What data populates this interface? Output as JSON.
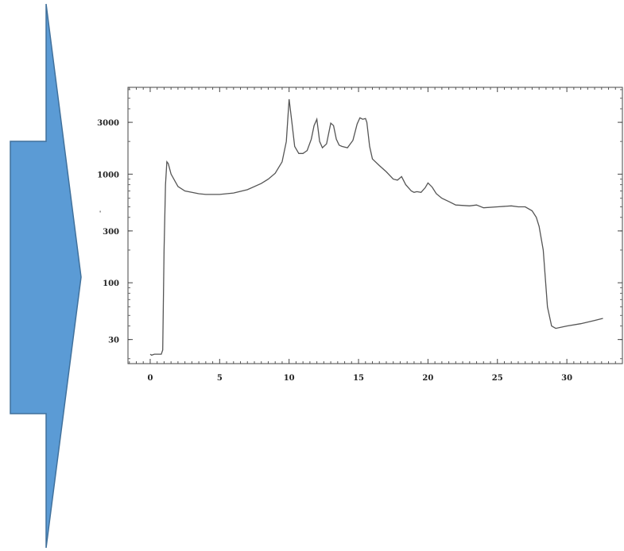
{
  "arrow": {
    "color": "#5B9BD5",
    "stroke": "#41719C",
    "icon": "right-arrow-shape"
  },
  "chart_data": {
    "type": "line",
    "title": "",
    "xlabel": "",
    "ylabel": "",
    "xlim": [
      -1.6,
      34
    ],
    "ylim": [
      18,
      6300
    ],
    "y_scale": "log",
    "grid": false,
    "line_color": "#555555",
    "x_ticks": [
      0,
      5,
      10,
      15,
      20,
      25,
      30
    ],
    "x_tick_labels": [
      "0",
      "5",
      "10",
      "15",
      "20",
      "25",
      "30"
    ],
    "y_ticks": [
      30,
      100,
      300,
      1000,
      3000
    ],
    "y_tick_labels": [
      "30",
      "100",
      "300",
      "1000",
      "3000"
    ],
    "series": [
      {
        "x": [
          0,
          0.1,
          0.3,
          0.6,
          0.8,
          0.9,
          1.0,
          1.1,
          1.2,
          1.3,
          1.5,
          2.0,
          2.5,
          3.0,
          3.5,
          4.0,
          5.0,
          6.0,
          7.0,
          8.0,
          8.5,
          9.0,
          9.5,
          9.8,
          10.0,
          10.2,
          10.4,
          10.7,
          11.0,
          11.3,
          11.6,
          11.8,
          12.0,
          12.2,
          12.4,
          12.7,
          13.0,
          13.2,
          13.4,
          13.6,
          13.8,
          14.2,
          14.6,
          14.9,
          15.1,
          15.3,
          15.5,
          15.6,
          15.8,
          16.0,
          16.5,
          17.0,
          17.5,
          17.8,
          18.1,
          18.4,
          18.8,
          19.0,
          19.2,
          19.5,
          19.8,
          20.0,
          20.3,
          20.6,
          21.0,
          21.5,
          22.0,
          23.0,
          23.5,
          24.0,
          25.0,
          26.0,
          26.5,
          27.0,
          27.5,
          27.8,
          28.0,
          28.3,
          28.6,
          28.9,
          29.2,
          30.0,
          31.0,
          32.0,
          32.6
        ],
        "y": [
          22,
          21.5,
          22,
          22,
          22,
          24,
          200,
          800,
          1300,
          1250,
          1000,
          770,
          700,
          680,
          660,
          650,
          650,
          670,
          720,
          820,
          900,
          1020,
          1300,
          2000,
          4900,
          3000,
          1800,
          1550,
          1550,
          1650,
          2100,
          2800,
          3200,
          2000,
          1750,
          1900,
          2950,
          2800,
          2100,
          1850,
          1800,
          1750,
          2050,
          2900,
          3300,
          3200,
          3250,
          3000,
          1800,
          1380,
          1200,
          1050,
          900,
          880,
          950,
          800,
          700,
          680,
          690,
          680,
          750,
          830,
          760,
          660,
          600,
          560,
          520,
          510,
          520,
          490,
          500,
          510,
          500,
          500,
          460,
          400,
          330,
          200,
          60,
          40,
          38,
          40,
          42,
          45,
          47
        ]
      }
    ]
  }
}
